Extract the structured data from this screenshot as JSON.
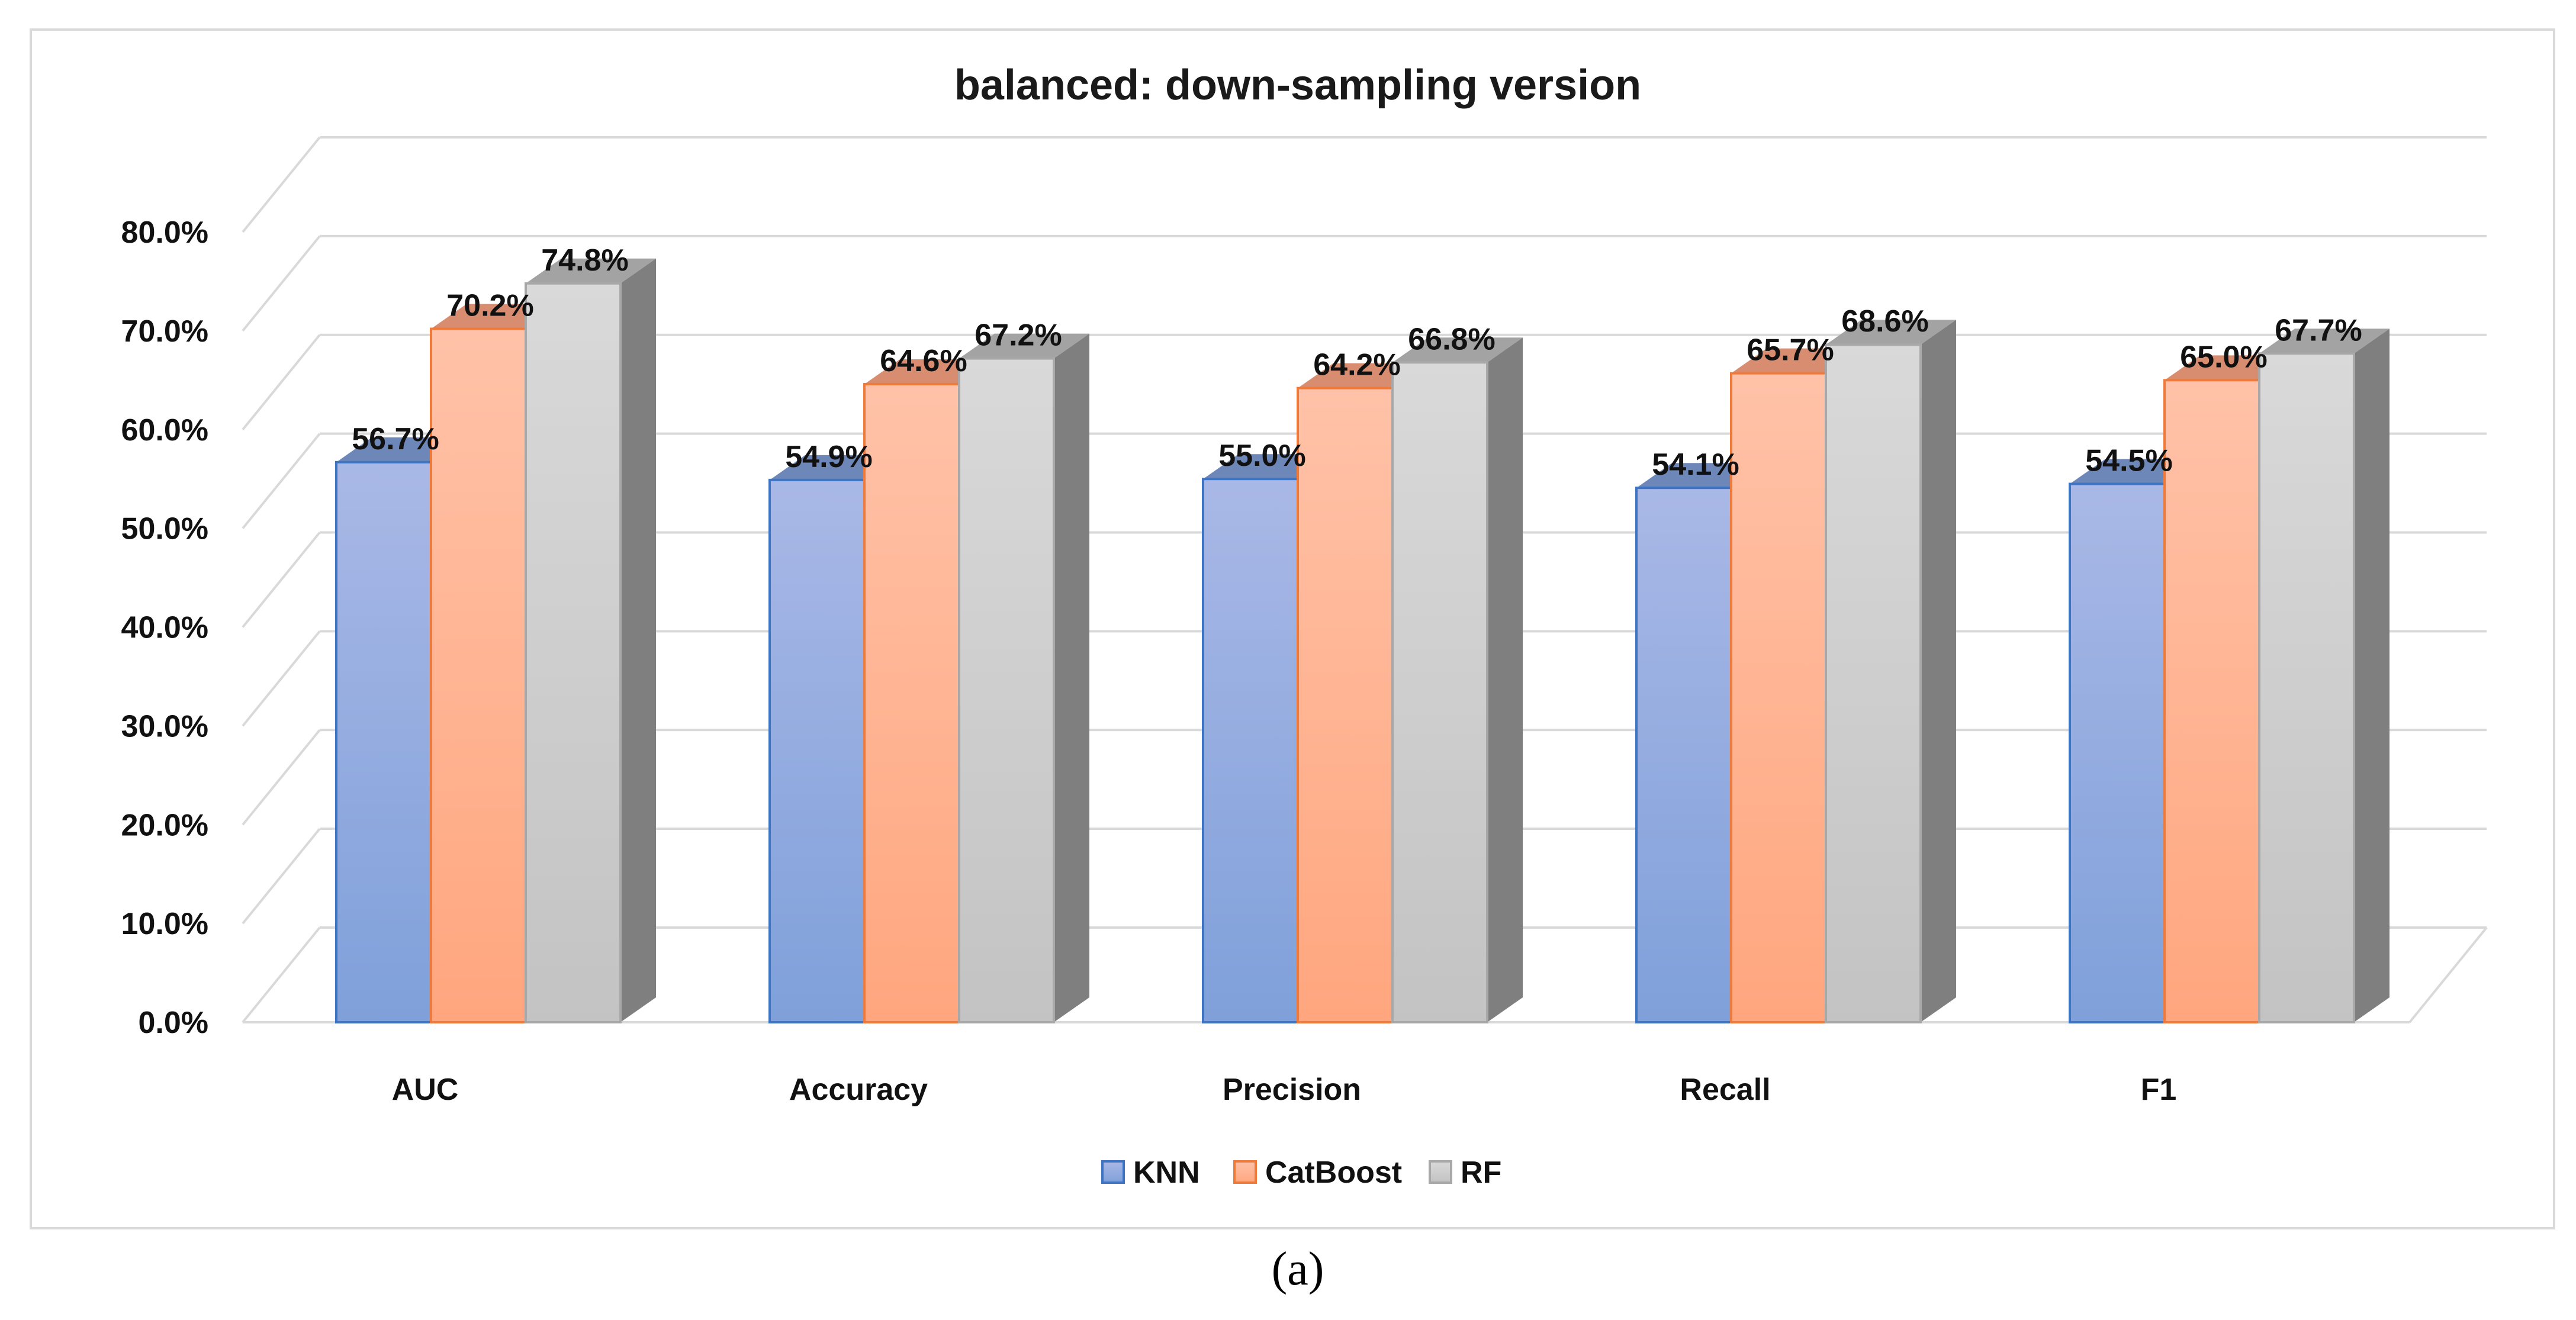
{
  "chart_data": {
    "type": "bar",
    "title": "balanced: down-sampling version",
    "caption": "(a)",
    "categories": [
      "AUC",
      "Accuracy",
      "Precision",
      "Recall",
      "F1"
    ],
    "series": [
      {
        "name": "KNN",
        "values": [
          56.7,
          54.9,
          55.0,
          54.1,
          54.5
        ],
        "labels": [
          "56.7%",
          "54.9%",
          "55.0%",
          "54.1%",
          "54.5%"
        ]
      },
      {
        "name": "CatBoost",
        "values": [
          70.2,
          64.6,
          64.2,
          65.7,
          65.0
        ],
        "labels": [
          "70.2%",
          "64.6%",
          "64.2%",
          "65.7%",
          "65.0%"
        ]
      },
      {
        "name": "RF",
        "values": [
          74.8,
          67.2,
          66.8,
          68.6,
          67.7
        ],
        "labels": [
          "74.8%",
          "67.2%",
          "66.8%",
          "68.6%",
          "67.7%"
        ]
      }
    ],
    "yticks": [
      0,
      10,
      20,
      30,
      40,
      50,
      60,
      70,
      80
    ],
    "ytick_labels": [
      "0.0%",
      "10.0%",
      "20.0%",
      "30.0%",
      "40.0%",
      "50.0%",
      "60.0%",
      "70.0%",
      "80.0%"
    ],
    "ylim": [
      0,
      85
    ],
    "grid": true,
    "legend_position": "bottom",
    "colors": {
      "KNN": {
        "top": "#a9b8e6",
        "bottom": "#7fa0da",
        "stroke": "#3d74c4",
        "cap": "#6d87b8",
        "side": "#5a6f98"
      },
      "CatBoost": {
        "top": "#ffc2a8",
        "bottom": "#ffa67e",
        "stroke": "#ef7a3a",
        "cap": "#d88d70",
        "side": "#c47a5a"
      },
      "RF": {
        "top": "#d9d9d9",
        "bottom": "#c3c3c3",
        "stroke": "#a8a8a8",
        "cap": "#a3a3a3",
        "side": "#7f7f7f"
      }
    }
  }
}
